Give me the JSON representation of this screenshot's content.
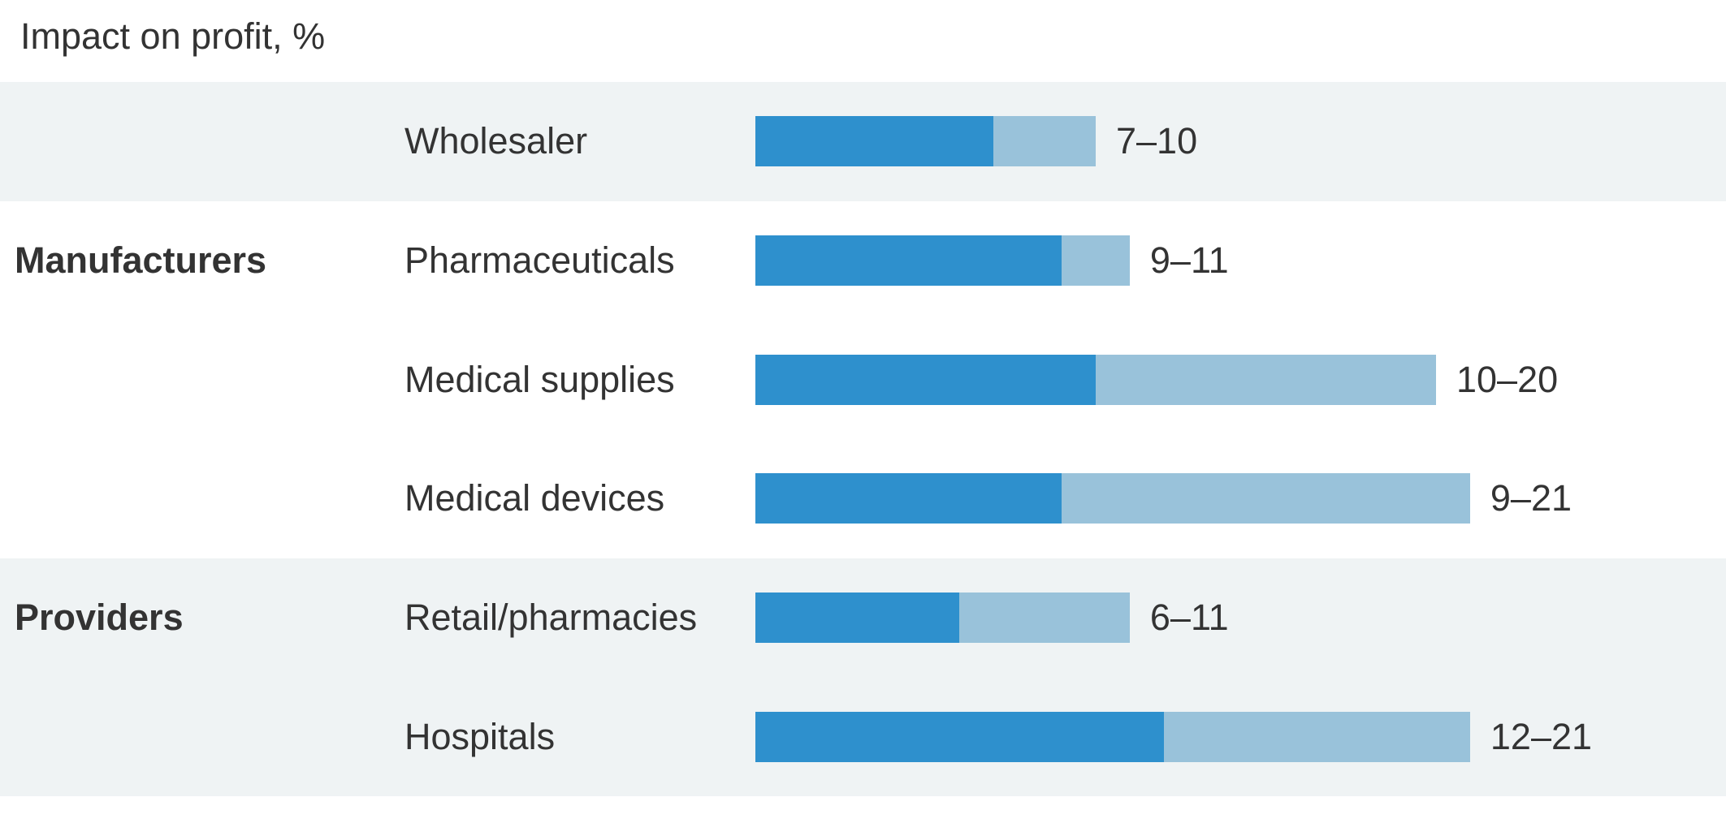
{
  "chart_data": {
    "type": "bar",
    "orientation": "horizontal",
    "title": "Impact on profit, %",
    "xlabel": "",
    "ylabel": "",
    "xlim": [
      0,
      28
    ],
    "grid": false,
    "legend": null,
    "series": [
      {
        "name": "low-estimate",
        "color": "#2E90CD"
      },
      {
        "name": "high-estimate-extension",
        "color": "#99C2DA"
      }
    ],
    "rows": [
      {
        "group": "",
        "category": "Wholesaler",
        "low": 7,
        "high": 10,
        "label": "7–10",
        "shaded": true
      },
      {
        "group": "Manufacturers",
        "category": "Pharmaceuticals",
        "low": 9,
        "high": 11,
        "label": "9–11",
        "shaded": false
      },
      {
        "group": "",
        "category": "Medical supplies",
        "low": 10,
        "high": 20,
        "label": "10–20",
        "shaded": false
      },
      {
        "group": "",
        "category": "Medical devices",
        "low": 9,
        "high": 21,
        "label": "9–21",
        "shaded": false
      },
      {
        "group": "Providers",
        "category": "Retail/pharmacies",
        "low": 6,
        "high": 11,
        "label": "6–11",
        "shaded": true
      },
      {
        "group": "",
        "category": "Hospitals",
        "low": 12,
        "high": 21,
        "label": "12–21",
        "shaded": true
      }
    ],
    "colors": {
      "bar_dark": "#2E90CD",
      "bar_light": "#99C2DA",
      "row_band": "#EFF3F4",
      "text": "#333333",
      "background": "#ffffff"
    }
  }
}
